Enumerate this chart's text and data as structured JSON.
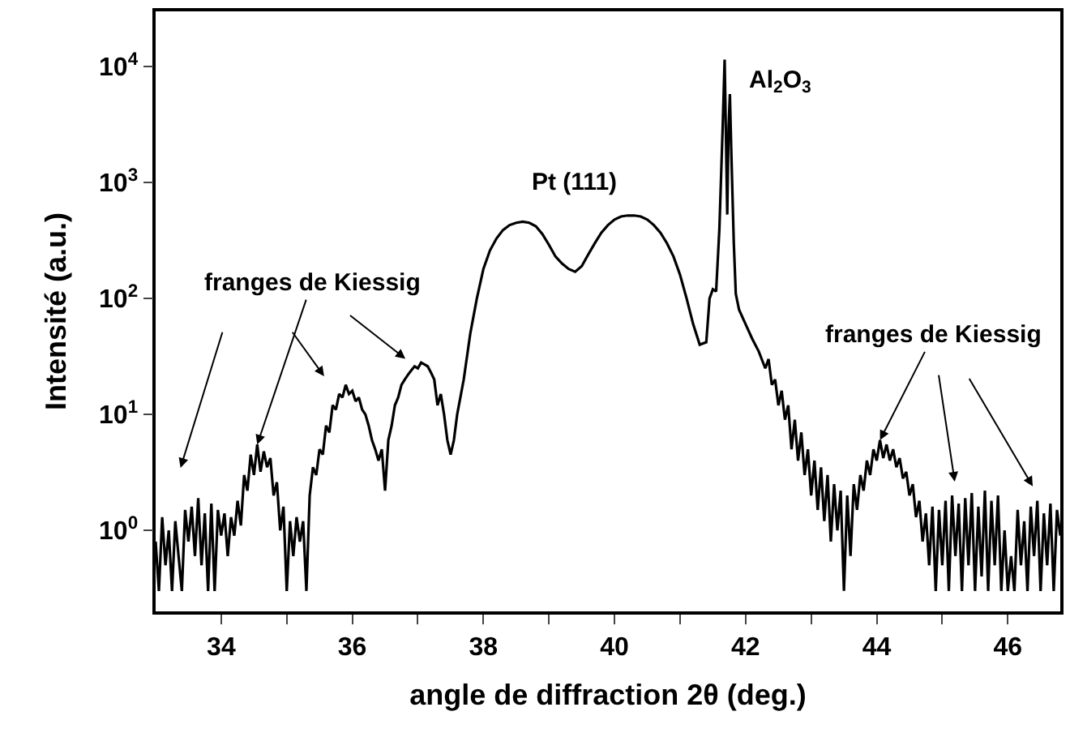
{
  "chart_data": {
    "type": "line",
    "xlabel": "angle de diffraction 2θ (deg.)",
    "ylabel": "Intensité (a.u.)",
    "log": "y",
    "marker": "none",
    "line_style": "solid",
    "xlim": [
      33,
      46.8
    ],
    "xticks": [
      34,
      {
        "value": 35,
        "label": null
      },
      36,
      {
        "value": 37,
        "label": null
      },
      38,
      {
        "value": 39,
        "label": null
      },
      40,
      {
        "value": 41,
        "label": null
      },
      42,
      {
        "value": 43,
        "label": null
      },
      44,
      {
        "value": 45,
        "label": null
      },
      46
    ],
    "ylim": [
      0.2,
      30000
    ],
    "yticks": [
      {
        "value": 1,
        "label": "10$^{0}$"
      },
      {
        "value": 10,
        "label": "10$^{1}$"
      },
      {
        "value": 100,
        "label": "10$^{2}$"
      },
      {
        "value": 1000,
        "label": "10$^{3}$"
      },
      {
        "value": 10000,
        "label": "10$^{4}$"
      }
    ],
    "annotations": [
      {
        "text": "franges de Kiessig",
        "x": 34.55,
        "y": 5.5
      },
      "Pt (111)",
      "Al$_{2}$O$_{3}$",
      {
        "text": "franges de Kiessig",
        "x": 44.05,
        "y": 6
      }
    ],
    "series": [
      {
        "color": "#000000",
        "x": [
          33.0,
          33.05,
          33.1,
          33.15,
          33.2,
          33.25,
          33.3,
          33.35,
          33.4,
          33.45,
          33.5,
          33.55,
          33.6,
          33.65,
          33.7,
          33.75,
          33.8,
          33.85,
          33.9,
          33.95,
          34.0,
          34.05,
          34.1,
          34.15,
          34.2,
          34.25,
          34.3,
          34.35,
          34.4,
          34.45,
          34.5,
          34.55,
          34.6,
          34.65,
          34.7,
          34.75,
          34.8,
          34.85,
          34.9,
          34.95,
          35.0,
          35.05,
          35.1,
          35.15,
          35.2,
          35.25,
          35.3,
          35.35,
          35.4,
          35.45,
          35.5,
          35.55,
          35.6,
          35.65,
          35.7,
          35.75,
          35.8,
          35.85,
          35.9,
          35.95,
          36.0,
          36.05,
          36.1,
          36.15,
          36.2,
          36.25,
          36.3,
          36.35,
          36.4,
          36.45,
          36.5,
          36.55,
          36.6,
          36.65,
          36.7,
          36.75,
          36.8,
          36.85,
          36.9,
          36.95,
          37.0,
          37.05,
          37.1,
          37.15,
          37.2,
          37.25,
          37.3,
          37.35,
          37.4,
          37.45,
          37.5,
          37.55,
          37.6,
          37.7,
          37.8,
          37.9,
          38.0,
          38.1,
          38.2,
          38.3,
          38.4,
          38.5,
          38.6,
          38.7,
          38.8,
          38.9,
          39.0,
          39.1,
          39.2,
          39.3,
          39.4,
          39.5,
          39.6,
          39.7,
          39.8,
          39.9,
          40.0,
          40.1,
          40.2,
          40.3,
          40.4,
          40.5,
          40.6,
          40.7,
          40.8,
          40.9,
          41.0,
          41.1,
          41.2,
          41.3,
          41.4,
          41.45,
          41.5,
          41.55,
          41.6,
          41.65,
          41.68,
          41.7,
          41.72,
          41.74,
          41.76,
          41.78,
          41.82,
          41.85,
          41.9,
          42.0,
          42.1,
          42.2,
          42.3,
          42.35,
          42.4,
          42.45,
          42.5,
          42.55,
          42.6,
          42.65,
          42.7,
          42.75,
          42.8,
          42.85,
          42.9,
          42.95,
          43.0,
          43.05,
          43.1,
          43.15,
          43.2,
          43.25,
          43.3,
          43.35,
          43.4,
          43.45,
          43.5,
          43.55,
          43.6,
          43.65,
          43.7,
          43.75,
          43.8,
          43.85,
          43.9,
          43.95,
          44.0,
          44.05,
          44.1,
          44.15,
          44.2,
          44.25,
          44.3,
          44.35,
          44.4,
          44.45,
          44.5,
          44.55,
          44.6,
          44.65,
          44.7,
          44.75,
          44.8,
          44.85,
          44.9,
          44.95,
          45.0,
          45.05,
          45.1,
          45.15,
          45.2,
          45.25,
          45.3,
          45.35,
          45.4,
          45.45,
          45.5,
          45.55,
          45.6,
          45.65,
          45.7,
          45.75,
          45.8,
          45.85,
          45.9,
          45.95,
          46.0,
          46.05,
          46.1,
          46.15,
          46.2,
          46.25,
          46.3,
          46.35,
          46.4,
          46.45,
          46.5,
          46.55,
          46.6,
          46.65,
          46.7,
          46.75,
          46.8
        ],
        "values": [
          0.8,
          0.3,
          1.3,
          0.5,
          1.0,
          0.3,
          1.2,
          0.6,
          0.3,
          1.5,
          0.8,
          1.6,
          0.6,
          1.9,
          0.5,
          1.4,
          0.3,
          1.7,
          0.3,
          1.5,
          0.9,
          1.4,
          0.6,
          1.3,
          0.9,
          1.8,
          1.1,
          3.0,
          2.2,
          4.5,
          3.0,
          5.5,
          3.2,
          4.8,
          3.5,
          4.2,
          2.0,
          2.6,
          1.0,
          1.6,
          0.3,
          1.2,
          0.6,
          1.3,
          0.8,
          1.2,
          0.3,
          2.0,
          3.5,
          3.0,
          5.0,
          4.5,
          8,
          7,
          12,
          11,
          15,
          14,
          18,
          15,
          16,
          13,
          14,
          11,
          10,
          8,
          6,
          5,
          4,
          5,
          2.2,
          6,
          8,
          12,
          14,
          18,
          20,
          22,
          24,
          26,
          25,
          28,
          27,
          26,
          23,
          20,
          12,
          15,
          10,
          6,
          4.5,
          6,
          10,
          20,
          50,
          100,
          180,
          260,
          330,
          390,
          430,
          450,
          460,
          450,
          420,
          360,
          290,
          230,
          200,
          180,
          170,
          190,
          240,
          300,
          370,
          430,
          480,
          510,
          520,
          520,
          510,
          480,
          430,
          370,
          300,
          230,
          160,
          100,
          60,
          40,
          42,
          100,
          120,
          115,
          400,
          3000,
          11500,
          2500,
          530,
          3000,
          5800,
          2000,
          300,
          110,
          80,
          60,
          45,
          35,
          25,
          30,
          18,
          20,
          12,
          16,
          9,
          12,
          5,
          9,
          4,
          7,
          3,
          5,
          2,
          4,
          1.5,
          3.5,
          1.2,
          3,
          0.8,
          2.5,
          1.0,
          2.2,
          0.3,
          2.0,
          0.6,
          2.5,
          1.5,
          3.0,
          2.2,
          4,
          3,
          5,
          4,
          6,
          4.2,
          5.5,
          4,
          5,
          3.5,
          4.2,
          2.8,
          3.2,
          2,
          2.5,
          1.3,
          1.8,
          0.8,
          1.4,
          0.5,
          1.6,
          0.3,
          1.5,
          0.5,
          1.8,
          0.3,
          2.0,
          0.6,
          1.7,
          0.3,
          1.9,
          0.5,
          2.1,
          0.3,
          1.6,
          0.4,
          2.2,
          0.3,
          1.8,
          0.5,
          2.0,
          0.3,
          1.0,
          0.3,
          0.6,
          0.3,
          1.5,
          0.5,
          1.2,
          0.3,
          1.6,
          0.6,
          1.8,
          0.3,
          1.4,
          0.5,
          1.7,
          0.3,
          1.5,
          0.9
        ]
      }
    ]
  }
}
